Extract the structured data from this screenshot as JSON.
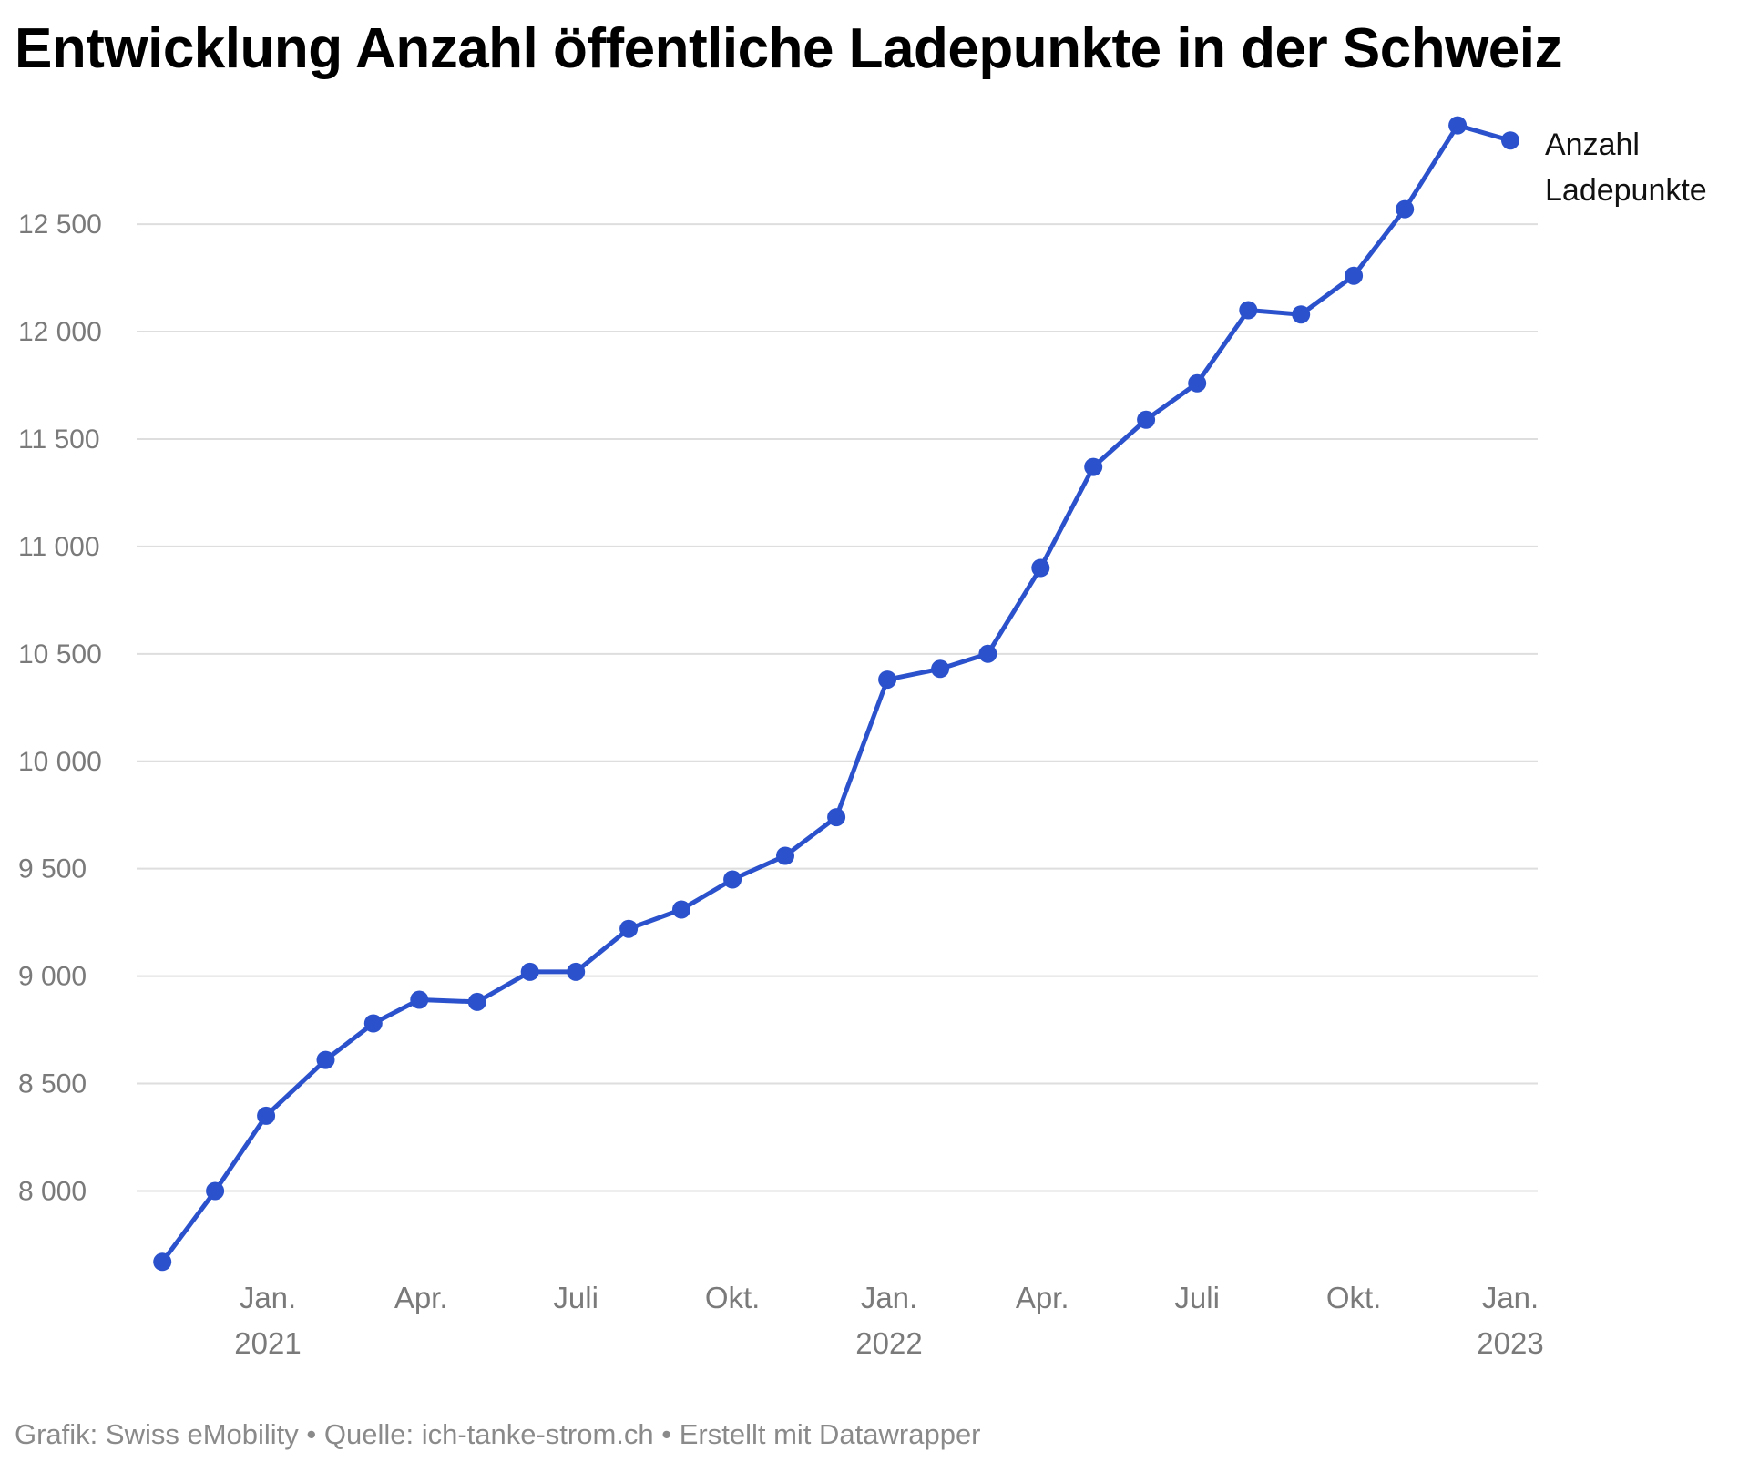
{
  "title": "Entwicklung Anzahl öffentliche Ladepunkte in der Schweiz",
  "footer": "Grafik: Swiss eMobility • Quelle: ich-tanke-strom.ch • Erstellt mit Datawrapper",
  "colors": {
    "series": "#2b52cc",
    "grid": "#dedede",
    "tick_text": "#7a7a7a"
  },
  "chart_data": {
    "type": "line",
    "title": "Entwicklung Anzahl öffentliche Ladepunkte in der Schweiz",
    "xlabel": "",
    "ylabel": "",
    "ylim": [
      7650,
      12950
    ],
    "y_ticks": [
      {
        "value": 8000,
        "label": "8 000"
      },
      {
        "value": 8500,
        "label": "8 500"
      },
      {
        "value": 9000,
        "label": "9 000"
      },
      {
        "value": 9500,
        "label": "9 500"
      },
      {
        "value": 10000,
        "label": "10 000"
      },
      {
        "value": 10500,
        "label": "10 500"
      },
      {
        "value": 11000,
        "label": "11 000"
      },
      {
        "value": 11500,
        "label": "11 500"
      },
      {
        "value": 12000,
        "label": "12 000"
      },
      {
        "value": 12500,
        "label": "12 500"
      }
    ],
    "x_ticks": [
      {
        "date": "2021-01-01",
        "label": "Jan.",
        "year": "2021"
      },
      {
        "date": "2021-04-01",
        "label": "Apr.",
        "year": ""
      },
      {
        "date": "2021-07-01",
        "label": "Juli",
        "year": ""
      },
      {
        "date": "2021-10-01",
        "label": "Okt.",
        "year": ""
      },
      {
        "date": "2022-01-01",
        "label": "Jan.",
        "year": "2022"
      },
      {
        "date": "2022-04-01",
        "label": "Apr.",
        "year": ""
      },
      {
        "date": "2022-07-01",
        "label": "Juli",
        "year": ""
      },
      {
        "date": "2022-10-01",
        "label": "Okt.",
        "year": ""
      },
      {
        "date": "2023-01-01",
        "label": "Jan.",
        "year": "2023"
      }
    ],
    "grid": true,
    "legend_placement": "right, at end of line",
    "series": [
      {
        "name": "Anzahl Ladepunkte",
        "points": [
          {
            "x": "2020-10-31",
            "y": 7670
          },
          {
            "x": "2020-12-01",
            "y": 8000
          },
          {
            "x": "2020-12-31",
            "y": 8350
          },
          {
            "x": "2021-02-04",
            "y": 8610
          },
          {
            "x": "2021-03-04",
            "y": 8780
          },
          {
            "x": "2021-03-31",
            "y": 8890
          },
          {
            "x": "2021-05-04",
            "y": 8880
          },
          {
            "x": "2021-06-04",
            "y": 9020
          },
          {
            "x": "2021-07-01",
            "y": 9020
          },
          {
            "x": "2021-08-01",
            "y": 9220
          },
          {
            "x": "2021-09-01",
            "y": 9310
          },
          {
            "x": "2021-10-01",
            "y": 9450
          },
          {
            "x": "2021-11-01",
            "y": 9560
          },
          {
            "x": "2021-12-01",
            "y": 9740
          },
          {
            "x": "2021-12-31",
            "y": 10380
          },
          {
            "x": "2022-01-31",
            "y": 10430
          },
          {
            "x": "2022-02-28",
            "y": 10500
          },
          {
            "x": "2022-03-31",
            "y": 10900
          },
          {
            "x": "2022-05-01",
            "y": 11370
          },
          {
            "x": "2022-06-01",
            "y": 11590
          },
          {
            "x": "2022-07-01",
            "y": 11760
          },
          {
            "x": "2022-07-31",
            "y": 12100
          },
          {
            "x": "2022-08-31",
            "y": 12080
          },
          {
            "x": "2022-10-01",
            "y": 12260
          },
          {
            "x": "2022-10-31",
            "y": 12570
          },
          {
            "x": "2022-12-01",
            "y": 12960
          },
          {
            "x": "2023-01-01",
            "y": 12890
          }
        ]
      }
    ]
  }
}
